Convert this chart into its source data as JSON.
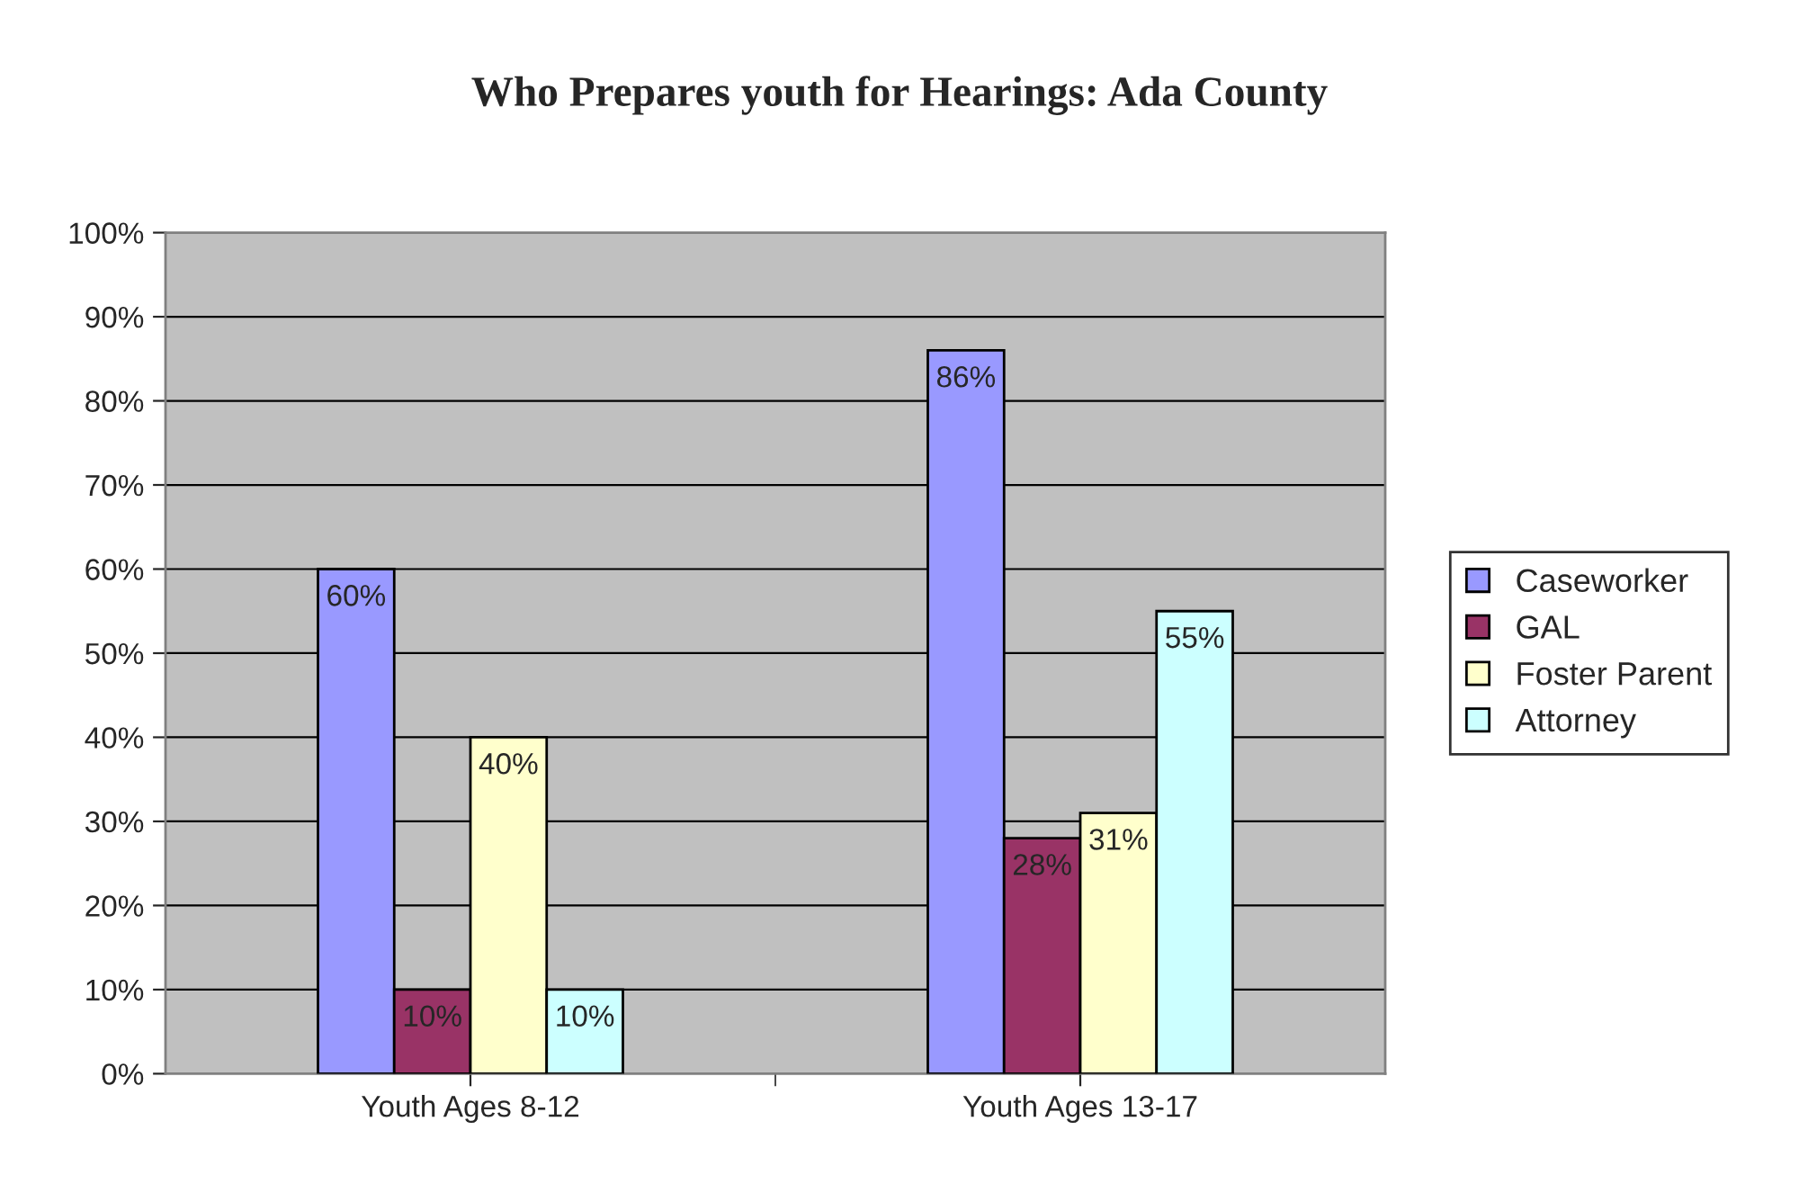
{
  "chart_data": {
    "type": "bar",
    "title": "Who Prepares youth for Hearings: Ada County",
    "categories": [
      "Youth Ages 8-12",
      "Youth Ages 13-17"
    ],
    "series": [
      {
        "name": "Caseworker",
        "color": "#9999ff",
        "values": [
          60,
          86
        ],
        "value_labels": [
          "60%",
          "86%"
        ]
      },
      {
        "name": "GAL",
        "color": "#993366",
        "values": [
          10,
          28
        ],
        "value_labels": [
          "10%",
          "28%"
        ]
      },
      {
        "name": "Foster Parent",
        "color": "#ffffcc",
        "values": [
          40,
          31
        ],
        "value_labels": [
          "40%",
          "31%"
        ]
      },
      {
        "name": "Attorney",
        "color": "#ccffff",
        "values": [
          10,
          55
        ],
        "value_labels": [
          "10%",
          "55%"
        ]
      }
    ],
    "ylim": [
      0,
      100
    ],
    "yticks": [
      {
        "value": 0,
        "label": "0%"
      },
      {
        "value": 10,
        "label": "10%"
      },
      {
        "value": 20,
        "label": "20%"
      },
      {
        "value": 30,
        "label": "30%"
      },
      {
        "value": 40,
        "label": "40%"
      },
      {
        "value": 50,
        "label": "50%"
      },
      {
        "value": 60,
        "label": "60%"
      },
      {
        "value": 70,
        "label": "70%"
      },
      {
        "value": 80,
        "label": "80%"
      },
      {
        "value": 90,
        "label": "90%"
      },
      {
        "value": 100,
        "label": "100%"
      }
    ],
    "grid": "y",
    "legend": "right"
  }
}
